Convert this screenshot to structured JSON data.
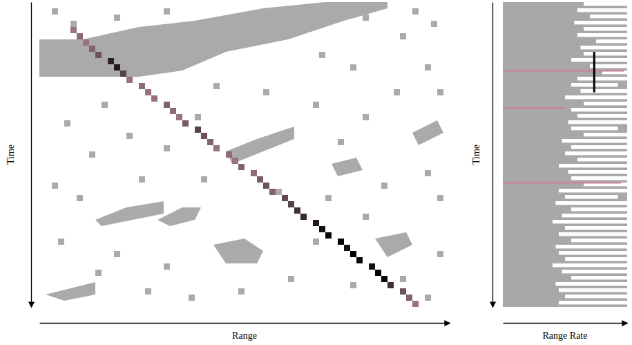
{
  "chart_data": [
    {
      "type": "heatmap",
      "xlabel": "Range",
      "ylabel": "Time",
      "tick_labels": false,
      "xlim": [
        0,
        66
      ],
      "ylim": [
        0,
        49
      ],
      "color": "#aaaaaa",
      "clutter_regions": [
        [
          [
            0,
            6
          ],
          [
            7,
            6
          ],
          [
            16,
            4
          ],
          [
            25,
            3
          ],
          [
            36,
            1
          ],
          [
            46,
            0
          ],
          [
            56,
            0
          ],
          [
            56,
            1
          ],
          [
            49,
            3
          ],
          [
            40,
            6
          ],
          [
            30,
            8
          ],
          [
            23,
            11
          ],
          [
            16,
            12
          ],
          [
            0,
            12
          ]
        ],
        [
          [
            30,
            24
          ],
          [
            35,
            22
          ],
          [
            41,
            20
          ],
          [
            41,
            22
          ],
          [
            36,
            24
          ],
          [
            31,
            26
          ]
        ],
        [
          [
            19,
            35
          ],
          [
            23,
            33
          ],
          [
            26,
            33
          ],
          [
            25,
            35
          ],
          [
            21,
            36
          ]
        ],
        [
          [
            9,
            35
          ],
          [
            14,
            33
          ],
          [
            20,
            32
          ],
          [
            20,
            34
          ],
          [
            15,
            35
          ],
          [
            10,
            36
          ]
        ],
        [
          [
            28,
            39
          ],
          [
            33,
            38
          ],
          [
            36,
            40
          ],
          [
            35,
            42
          ],
          [
            30,
            42
          ]
        ],
        [
          [
            1,
            47
          ],
          [
            5,
            46
          ],
          [
            9,
            45
          ],
          [
            9,
            47
          ],
          [
            4,
            48
          ]
        ],
        [
          [
            54,
            38
          ],
          [
            59,
            37
          ],
          [
            60,
            39
          ],
          [
            56,
            41
          ]
        ],
        [
          [
            47,
            26
          ],
          [
            51,
            25
          ],
          [
            52,
            27
          ],
          [
            48,
            28
          ]
        ],
        [
          [
            60,
            21
          ],
          [
            64,
            19
          ],
          [
            65,
            21
          ],
          [
            61,
            23
          ]
        ]
      ],
      "clutter_cells": [
        [
          2,
          1
        ],
        [
          5,
          3
        ],
        [
          12,
          2
        ],
        [
          20,
          1
        ],
        [
          27,
          4
        ],
        [
          33,
          2
        ],
        [
          40,
          3
        ],
        [
          52,
          2
        ],
        [
          60,
          1
        ],
        [
          63,
          3
        ],
        [
          58,
          5
        ],
        [
          45,
          8
        ],
        [
          50,
          10
        ],
        [
          62,
          10
        ],
        [
          28,
          13
        ],
        [
          36,
          14
        ],
        [
          10,
          16
        ],
        [
          4,
          19
        ],
        [
          14,
          21
        ],
        [
          20,
          23
        ],
        [
          8,
          24
        ],
        [
          25,
          18
        ],
        [
          44,
          16
        ],
        [
          52,
          18
        ],
        [
          57,
          14
        ],
        [
          64,
          14
        ],
        [
          48,
          22
        ],
        [
          2,
          29
        ],
        [
          6,
          31
        ],
        [
          16,
          28
        ],
        [
          26,
          28
        ],
        [
          38,
          30
        ],
        [
          46,
          31
        ],
        [
          55,
          29
        ],
        [
          62,
          27
        ],
        [
          64,
          31
        ],
        [
          3,
          38
        ],
        [
          12,
          40
        ],
        [
          20,
          42
        ],
        [
          40,
          44
        ],
        [
          44,
          38
        ],
        [
          50,
          45
        ],
        [
          58,
          44
        ],
        [
          62,
          47
        ],
        [
          24,
          47
        ],
        [
          32,
          46
        ],
        [
          17,
          46
        ],
        [
          9,
          43
        ],
        [
          64,
          40
        ],
        [
          52,
          34
        ]
      ],
      "track": {
        "x": [
          5,
          6,
          7,
          8,
          9,
          11,
          12,
          13,
          14,
          16,
          17,
          18,
          20,
          21,
          22,
          23,
          25,
          26,
          27,
          28,
          30,
          31,
          32,
          34,
          35,
          36,
          37,
          39,
          40,
          41,
          42,
          44,
          45,
          46,
          48,
          49,
          50,
          51,
          53,
          54,
          55,
          56,
          58,
          59,
          60
        ],
        "y": [
          4,
          5,
          6,
          7,
          8,
          9,
          10,
          11,
          12,
          13,
          14,
          15,
          16,
          17,
          18,
          19,
          20,
          21,
          22,
          23,
          24,
          25,
          26,
          27,
          28,
          29,
          30,
          31,
          32,
          33,
          34,
          35,
          36,
          37,
          38,
          39,
          40,
          41,
          42,
          43,
          44,
          45,
          46,
          47,
          48
        ],
        "values": [
          0.3,
          0.35,
          0.3,
          0.4,
          0.5,
          0.8,
          0.85,
          0.6,
          0.3,
          0.35,
          0.3,
          0.3,
          0.4,
          0.35,
          0.3,
          0.45,
          0.6,
          0.5,
          0.4,
          0.3,
          0.35,
          0.3,
          0.4,
          0.35,
          0.45,
          0.5,
          0.4,
          0.55,
          0.6,
          0.7,
          0.75,
          0.85,
          0.9,
          0.95,
          1,
          0.9,
          1,
          0.95,
          0.9,
          1,
          0.95,
          0.7,
          0.5,
          0.4,
          0.3
        ],
        "value_range": [
          0,
          1
        ],
        "colors": [
          "#d9a3b3",
          "#000000"
        ]
      }
    },
    {
      "type": "heatmap",
      "xlabel": "Range Rate",
      "ylabel": "Time",
      "tick_labels": false,
      "xlim": [
        0,
        20
      ],
      "ylim": [
        0,
        49
      ],
      "color": "#a8a8a8",
      "streak_color": "#ffffff",
      "streaks": [
        [
          0,
          13,
          20
        ],
        [
          1,
          12,
          20
        ],
        [
          2,
          14,
          20
        ],
        [
          3,
          11.5,
          20
        ],
        [
          4,
          13,
          20
        ],
        [
          5,
          12,
          20
        ],
        [
          6,
          15,
          20
        ],
        [
          7,
          12.5,
          20
        ],
        [
          8,
          13,
          20
        ],
        [
          9,
          11,
          20
        ],
        [
          10,
          14,
          20
        ],
        [
          11,
          16,
          20
        ],
        [
          12,
          12,
          20
        ],
        [
          13,
          11,
          18.5
        ],
        [
          14,
          12.5,
          20
        ],
        [
          15,
          10,
          20
        ],
        [
          16,
          13,
          20
        ],
        [
          17,
          11,
          20
        ],
        [
          18,
          12,
          20
        ],
        [
          19,
          10.5,
          20
        ],
        [
          20,
          11,
          18.5
        ],
        [
          21,
          13,
          20
        ],
        [
          22,
          9.5,
          20
        ],
        [
          23,
          11,
          20
        ],
        [
          24,
          10,
          20
        ],
        [
          25,
          12,
          20
        ],
        [
          26,
          9,
          20
        ],
        [
          27,
          10.5,
          20
        ],
        [
          28,
          11,
          20
        ],
        [
          29,
          13,
          20
        ],
        [
          30,
          9,
          20
        ],
        [
          31,
          10,
          18.5
        ],
        [
          32,
          8.5,
          20
        ],
        [
          33,
          11,
          20
        ],
        [
          34,
          9.5,
          20
        ],
        [
          35,
          8,
          20
        ],
        [
          36,
          10,
          20
        ],
        [
          37,
          9,
          20
        ],
        [
          38,
          11,
          20
        ],
        [
          39,
          8.5,
          20
        ],
        [
          40,
          9,
          20
        ],
        [
          41,
          10,
          20
        ],
        [
          42,
          8,
          20
        ],
        [
          43,
          9.5,
          20
        ],
        [
          44,
          11,
          20
        ],
        [
          45,
          8.5,
          20
        ],
        [
          46,
          9,
          20
        ],
        [
          47,
          10,
          20
        ],
        [
          48,
          9,
          20
        ]
      ],
      "lines": {
        "color": "#c9869a",
        "y": [
          11,
          17,
          29
        ],
        "x0": [
          0,
          0,
          0
        ],
        "x1": [
          19.5,
          10,
          19
        ]
      },
      "track": {
        "x": [
          14.7,
          14.7
        ],
        "y": [
          8,
          14.5
        ],
        "color": "#000000"
      }
    }
  ]
}
